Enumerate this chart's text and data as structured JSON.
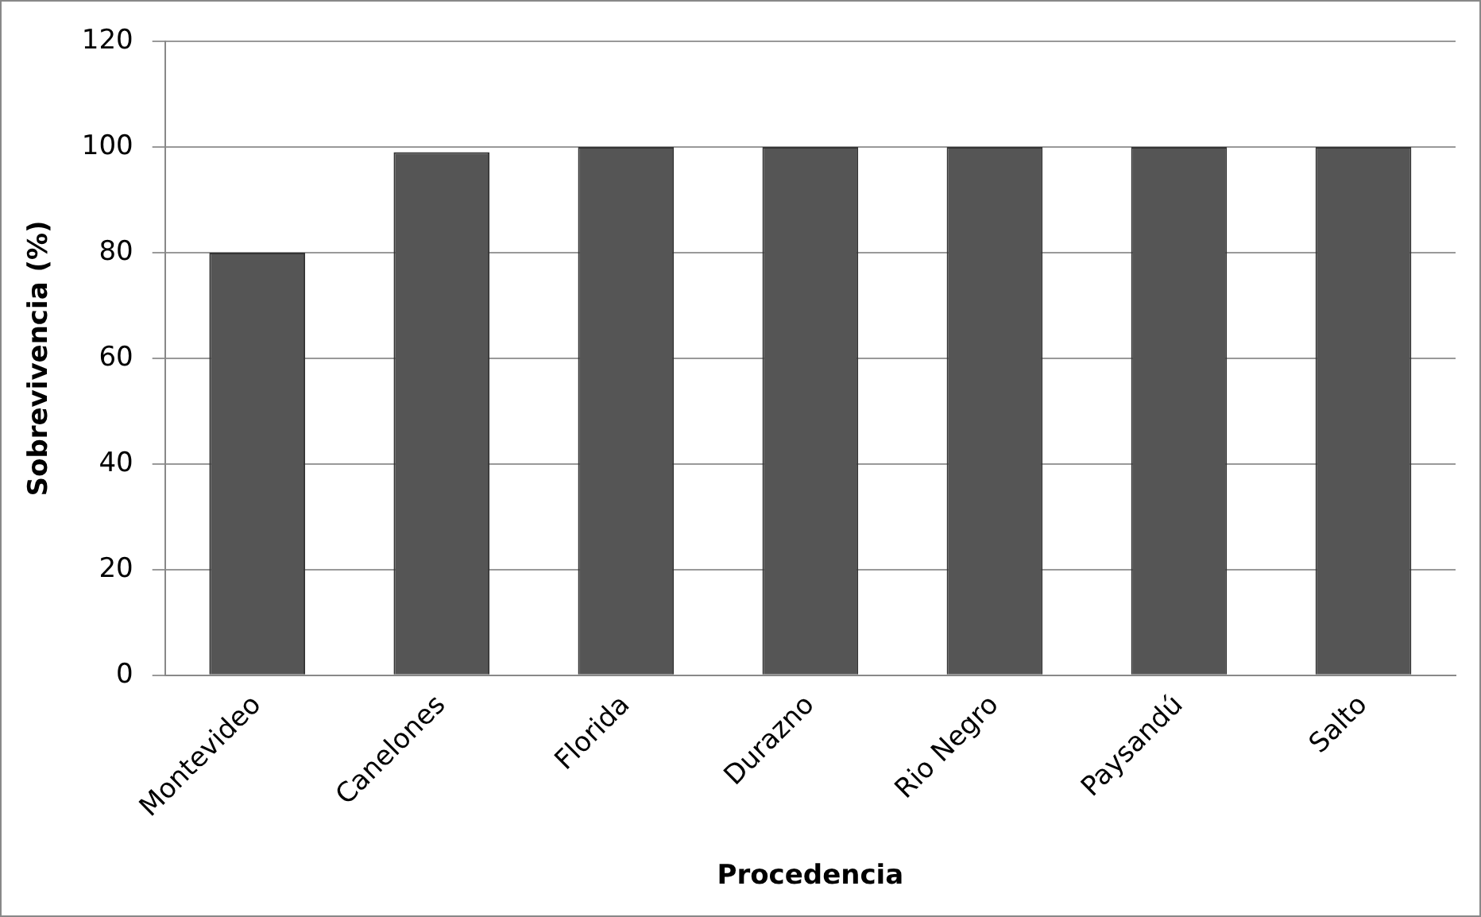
{
  "chart_data": {
    "type": "bar",
    "xlabel": "Procedencia",
    "ylabel": "Sobrevivencia (%)",
    "categories": [
      "Montevideo",
      "Canelones",
      "Florida",
      "Durazno",
      "Rio Negro",
      "Paysandú",
      "Salto"
    ],
    "values": [
      80,
      99,
      100,
      100,
      100,
      100,
      100
    ],
    "color": "#555555",
    "ylim": [
      0,
      120
    ],
    "yticks": [
      0,
      20,
      40,
      60,
      80,
      100,
      120
    ],
    "grid": "y",
    "legend": false
  }
}
